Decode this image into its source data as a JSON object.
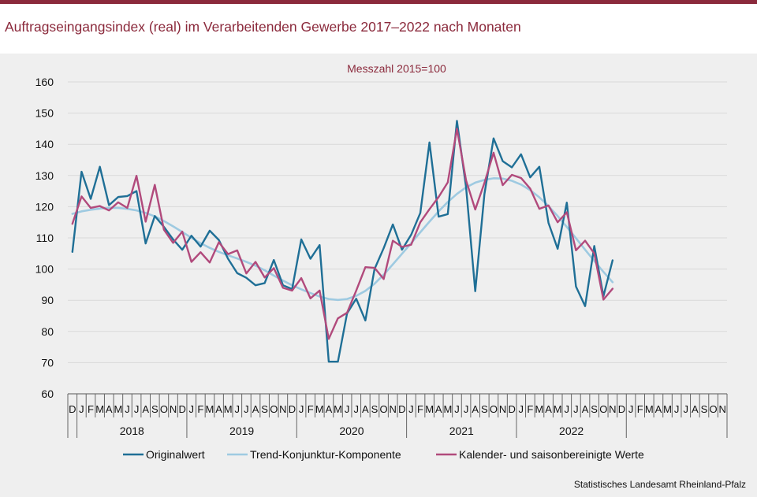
{
  "title": "Auftragseingangsindex (real) im Verarbeitenden Gewerbe 2017–2022 nach Monaten",
  "source": "Statistisches Landesamt Rheinland-Pfalz",
  "colors": {
    "brand": "#8b2a3c",
    "original": "#1f6f96",
    "trend": "#9ecae1",
    "seasonal": "#b14a7c",
    "grid": "#d9d9d9"
  },
  "chart_data": {
    "type": "line",
    "subtitle": "Messzahl 2015=100",
    "ylim": [
      60,
      160
    ],
    "yticks": [
      60,
      70,
      80,
      90,
      100,
      110,
      120,
      130,
      140,
      150,
      160
    ],
    "grid": "horizontal",
    "legend_position": "bottom",
    "month_labels": [
      "D",
      "J",
      "F",
      "M",
      "A",
      "M",
      "J",
      "J",
      "A",
      "S",
      "O",
      "N",
      "D",
      "J",
      "F",
      "M",
      "A",
      "M",
      "J",
      "J",
      "A",
      "S",
      "O",
      "N",
      "D",
      "J",
      "F",
      "M",
      "A",
      "M",
      "J",
      "J",
      "A",
      "S",
      "O",
      "N",
      "D",
      "J",
      "F",
      "M",
      "A",
      "M",
      "J",
      "J",
      "A",
      "S",
      "O",
      "N",
      "D",
      "J",
      "F",
      "M",
      "A",
      "M",
      "J",
      "J",
      "A",
      "S",
      "O",
      "N",
      "D",
      "J",
      "F",
      "M",
      "A",
      "M",
      "J",
      "J",
      "A",
      "S",
      "O",
      "N"
    ],
    "years": [
      "2018",
      "2019",
      "2020",
      "2021",
      "2022"
    ],
    "x": [
      "2017-12",
      "2018-01",
      "2018-02",
      "2018-03",
      "2018-04",
      "2018-05",
      "2018-06",
      "2018-07",
      "2018-08",
      "2018-09",
      "2018-10",
      "2018-11",
      "2018-12",
      "2019-01",
      "2019-02",
      "2019-03",
      "2019-04",
      "2019-05",
      "2019-06",
      "2019-07",
      "2019-08",
      "2019-09",
      "2019-10",
      "2019-11",
      "2019-12",
      "2020-01",
      "2020-02",
      "2020-03",
      "2020-04",
      "2020-05",
      "2020-06",
      "2020-07",
      "2020-08",
      "2020-09",
      "2020-10",
      "2020-11",
      "2020-12",
      "2021-01",
      "2021-02",
      "2021-03",
      "2021-04",
      "2021-05",
      "2021-06",
      "2021-07",
      "2021-08",
      "2021-09",
      "2021-10",
      "2021-11",
      "2021-12",
      "2022-01",
      "2022-02",
      "2022-03",
      "2022-04",
      "2022-05",
      "2022-06",
      "2022-07",
      "2022-08",
      "2022-09",
      "2022-10",
      "2022-11"
    ],
    "series": [
      {
        "name": "Originalwert",
        "values": [
          105.5,
          131.2,
          122.5,
          132.8,
          120.5,
          123.1,
          123.4,
          125.0,
          108.2,
          117.0,
          113.5,
          109.5,
          106.2,
          110.7,
          107.2,
          112.3,
          109.3,
          103.3,
          98.7,
          97.2,
          94.8,
          95.5,
          102.9,
          94.8,
          93.6,
          109.5,
          103.3,
          107.7,
          70.3,
          70.3,
          85.8,
          90.5,
          83.5,
          100.0,
          106.7,
          114.3,
          106.2,
          111.0,
          118.0,
          140.6,
          116.8,
          117.6,
          147.5,
          126.2,
          92.9,
          124.0,
          141.9,
          134.6,
          132.6,
          136.8,
          129.4,
          132.8,
          114.8,
          106.5,
          121.3,
          94.4,
          88.1,
          107.4,
          91.3,
          102.8
        ]
      },
      {
        "name": "Trend-Konjunktur-Komponente",
        "values": [
          117.7,
          118.5,
          119.0,
          119.4,
          119.6,
          119.6,
          119.3,
          118.8,
          118.0,
          116.9,
          115.4,
          113.7,
          111.9,
          110.0,
          108.3,
          106.8,
          105.5,
          104.4,
          103.4,
          102.3,
          101.1,
          99.6,
          97.9,
          96.3,
          94.8,
          93.5,
          92.3,
          91.2,
          90.4,
          90.1,
          90.4,
          91.4,
          93.0,
          95.3,
          98.2,
          101.5,
          104.9,
          108.3,
          111.8,
          115.2,
          118.5,
          121.5,
          124.1,
          126.2,
          127.7,
          128.6,
          129.1,
          129.0,
          128.3,
          127.1,
          125.3,
          123.0,
          120.2,
          117.0,
          113.5,
          109.9,
          106.2,
          102.6,
          99.1,
          95.8
        ]
      },
      {
        "name": "Kalender- und saisonbereinigte Werte",
        "values": [
          114.5,
          123.3,
          119.6,
          120.2,
          118.8,
          121.4,
          119.6,
          129.9,
          115.2,
          127.0,
          112.6,
          108.4,
          112.0,
          102.3,
          105.4,
          102.1,
          108.6,
          104.8,
          106.0,
          98.6,
          102.3,
          97.3,
          100.3,
          94.0,
          93.1,
          97.1,
          90.6,
          93.1,
          77.6,
          84.2,
          86.0,
          93.1,
          100.6,
          100.4,
          96.8,
          109.1,
          107.1,
          107.8,
          115.0,
          119.2,
          123.1,
          127.8,
          145.0,
          128.4,
          119.1,
          127.6,
          137.3,
          126.9,
          130.2,
          129.2,
          125.8,
          119.3,
          120.4,
          115.0,
          118.2,
          106.0,
          109.1,
          105.0,
          90.2,
          93.7
        ]
      }
    ]
  }
}
